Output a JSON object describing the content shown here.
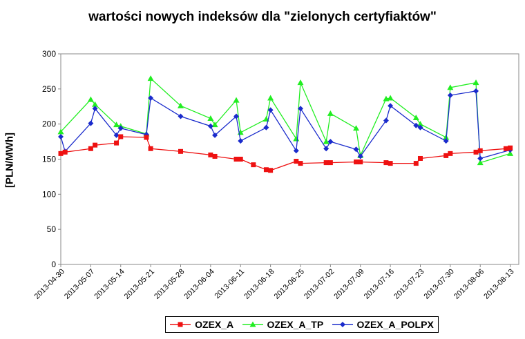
{
  "chart_data": {
    "type": "line",
    "title": "wartości nowych indeksów dla \"zielonych certyfiaktów\"",
    "xlabel": "",
    "ylabel": "[PLN/MWh]",
    "ylim": [
      0,
      300
    ],
    "yticks": [
      "0",
      "50",
      "100",
      "150",
      "200",
      "250",
      "300"
    ],
    "xticks": [
      "2013-04-30",
      "2013-05-07",
      "2013-05-14",
      "2013-05-21",
      "2013-05-28",
      "2013-06-04",
      "2013-06-11",
      "2013-06-18",
      "2013-06-25",
      "2013-07-02",
      "2013-07-09",
      "2013-07-16",
      "2013-07-23",
      "2013-07-30",
      "2013-08-06",
      "2013-08-13"
    ],
    "grid": false,
    "legend_position": "bottom",
    "series": [
      {
        "name": "OZEX_A",
        "color": "#ee1111",
        "marker": "square",
        "x": [
          "2013-04-30",
          "2013-05-01",
          "2013-05-07",
          "2013-05-08",
          "2013-05-13",
          "2013-05-14",
          "2013-05-20",
          "2013-05-21",
          "2013-05-28",
          "2013-06-04",
          "2013-06-05",
          "2013-06-10",
          "2013-06-11",
          "2013-06-14",
          "2013-06-17",
          "2013-06-18",
          "2013-06-24",
          "2013-06-25",
          "2013-07-01",
          "2013-07-02",
          "2013-07-08",
          "2013-07-09",
          "2013-07-15",
          "2013-07-16",
          "2013-07-22",
          "2013-07-23",
          "2013-07-29",
          "2013-07-30",
          "2013-08-05",
          "2013-08-06",
          "2013-08-12",
          "2013-08-13"
        ],
        "values": [
          158,
          160,
          165,
          170,
          173,
          182,
          181,
          165,
          161,
          156,
          154,
          150,
          150,
          142,
          135,
          134,
          147,
          144,
          145,
          145,
          146,
          146,
          145,
          144,
          144,
          151,
          155,
          158,
          160,
          162,
          165,
          166
        ]
      },
      {
        "name": "OZEX_A_TP",
        "color": "#22ee22",
        "marker": "triangle",
        "x": [
          "2013-04-30",
          "2013-05-07",
          "2013-05-08",
          "2013-05-13",
          "2013-05-14",
          "2013-05-20",
          "2013-05-21",
          "2013-05-28",
          "2013-06-04",
          "2013-06-05",
          "2013-06-10",
          "2013-06-11",
          "2013-06-17",
          "2013-06-18",
          "2013-06-24",
          "2013-06-25",
          "2013-07-01",
          "2013-07-02",
          "2013-07-08",
          "2013-07-09",
          "2013-07-15",
          "2013-07-16",
          "2013-07-22",
          "2013-07-23",
          "2013-07-29",
          "2013-07-30",
          "2013-08-05",
          "2013-08-06",
          "2013-08-13"
        ],
        "values": [
          189,
          235,
          228,
          199,
          197,
          186,
          265,
          226,
          208,
          199,
          234,
          188,
          207,
          237,
          179,
          259,
          175,
          215,
          194,
          155,
          236,
          237,
          209,
          200,
          181,
          252,
          259,
          145,
          158
        ]
      },
      {
        "name": "OZEX_A_POLPX",
        "color": "#1a2bcc",
        "marker": "diamond",
        "x": [
          "2013-04-30",
          "2013-05-01",
          "2013-05-07",
          "2013-05-08",
          "2013-05-13",
          "2013-05-14",
          "2013-05-20",
          "2013-05-21",
          "2013-05-28",
          "2013-06-04",
          "2013-06-05",
          "2013-06-10",
          "2013-06-11",
          "2013-06-17",
          "2013-06-18",
          "2013-06-24",
          "2013-06-25",
          "2013-07-01",
          "2013-07-02",
          "2013-07-08",
          "2013-07-09",
          "2013-07-15",
          "2013-07-16",
          "2013-07-22",
          "2013-07-23",
          "2013-07-29",
          "2013-07-30",
          "2013-08-05",
          "2013-08-06",
          "2013-08-13"
        ],
        "values": [
          182,
          161,
          201,
          222,
          184,
          194,
          185,
          237,
          211,
          197,
          184,
          211,
          176,
          195,
          220,
          162,
          222,
          165,
          175,
          164,
          154,
          205,
          226,
          198,
          195,
          176,
          241,
          247,
          151,
          163
        ]
      }
    ]
  }
}
